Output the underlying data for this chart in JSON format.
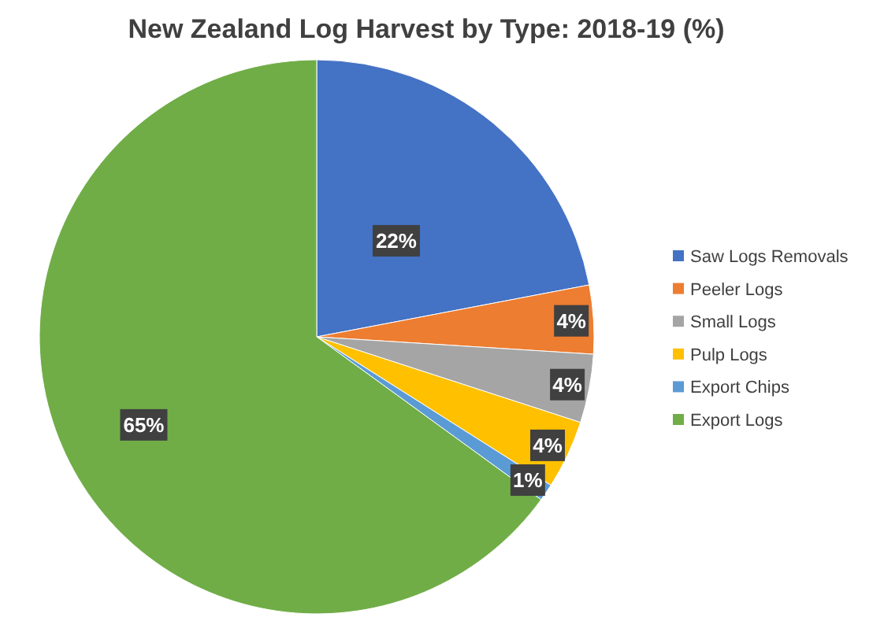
{
  "chart_data": {
    "type": "pie",
    "title": "New Zealand Log Harvest by Type: 2018-19 (%)",
    "categories": [
      "Saw Logs Removals",
      "Peeler Logs",
      "Small Logs",
      "Pulp Logs",
      "Export Chips",
      "Export Logs"
    ],
    "values": [
      22,
      4,
      4,
      4,
      1,
      65
    ],
    "colors": [
      "#4472c4",
      "#ed7d31",
      "#a5a5a5",
      "#ffc000",
      "#5b9bd5",
      "#70ad47"
    ],
    "value_labels": [
      "22%",
      "4%",
      "4%",
      "4%",
      "1%",
      "65%"
    ],
    "legend": "right"
  }
}
